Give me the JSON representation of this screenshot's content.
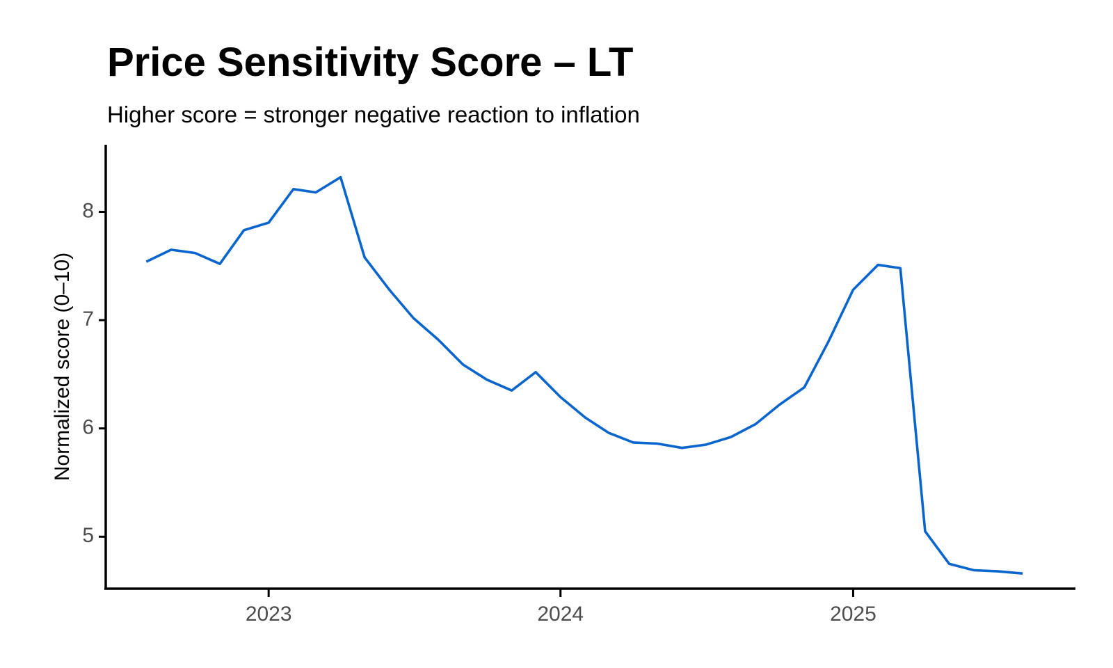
{
  "chart_data": {
    "type": "line",
    "title": "Price Sensitivity Score – LT",
    "subtitle": "Higher score = stronger negative reaction to inflation",
    "xlabel": "",
    "ylabel": "Normalized score (0–10)",
    "xlim": [
      "2022-06-13",
      "2025-10-06"
    ],
    "ylim": [
      4.52,
      8.62
    ],
    "x_ticks": [
      {
        "value": "2023-01-01",
        "label": "2023"
      },
      {
        "value": "2024-01-01",
        "label": "2024"
      },
      {
        "value": "2025-01-01",
        "label": "2025"
      }
    ],
    "y_ticks": [
      {
        "value": 5,
        "label": "5"
      },
      {
        "value": 6,
        "label": "6"
      },
      {
        "value": 7,
        "label": "7"
      },
      {
        "value": 8,
        "label": "8"
      }
    ],
    "grid": false,
    "legend": "none",
    "colors": {
      "line": "#0a66cc",
      "axis": "#000000"
    },
    "series": [
      {
        "x": [
          "2022-08-01",
          "2022-09-01",
          "2022-10-01",
          "2022-11-01",
          "2022-12-01",
          "2023-01-01",
          "2023-02-01",
          "2023-03-01",
          "2023-04-01",
          "2023-05-01",
          "2023-06-01",
          "2023-07-01",
          "2023-08-01",
          "2023-09-01",
          "2023-10-01",
          "2023-11-01",
          "2023-12-01",
          "2024-01-01",
          "2024-02-01",
          "2024-03-01",
          "2024-04-01",
          "2024-05-01",
          "2024-06-01",
          "2024-07-01",
          "2024-08-01",
          "2024-09-01",
          "2024-10-01",
          "2024-11-01",
          "2024-12-01",
          "2025-01-01",
          "2025-02-01",
          "2025-03-01",
          "2025-04-01",
          "2025-05-01",
          "2025-06-01",
          "2025-07-01",
          "2025-08-01"
        ],
        "values": [
          7.54,
          7.65,
          7.62,
          7.52,
          7.83,
          7.9,
          8.21,
          8.18,
          8.32,
          7.58,
          7.28,
          7.02,
          6.82,
          6.59,
          6.45,
          6.35,
          6.52,
          6.29,
          6.1,
          5.96,
          5.87,
          5.86,
          5.82,
          5.85,
          5.92,
          6.04,
          6.22,
          6.38,
          6.8,
          7.28,
          7.51,
          7.48,
          5.05,
          4.75,
          4.69,
          4.68,
          4.66
        ]
      }
    ]
  }
}
